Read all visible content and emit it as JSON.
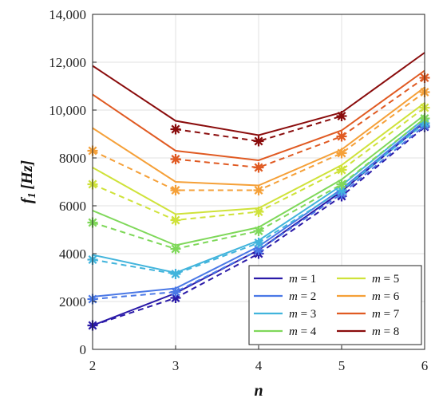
{
  "chart_data": {
    "type": "line",
    "xlabel_var": "n",
    "ylabel_var": "f",
    "ylabel_sub": "1",
    "ylabel_unit": "[Hz]",
    "x": [
      2,
      3,
      4,
      5,
      6
    ],
    "xlim": [
      2,
      6
    ],
    "ylim": [
      0,
      14000
    ],
    "x_ticks": [
      "2",
      "3",
      "4",
      "5",
      "6"
    ],
    "y_ticks": [
      "0",
      "2000",
      "4000",
      "6000",
      "8000",
      "10,000",
      "12,000",
      "14,000"
    ],
    "grid": true,
    "legend_position": "bottom-right",
    "series": [
      {
        "name": "m = 1",
        "var": "m",
        "value": "1",
        "color": "#2a1aa8",
        "solid": [
          1000,
          2350,
          4150,
          6600,
          9500
        ],
        "dashed": [
          1000,
          2150,
          4000,
          6400,
          9300
        ]
      },
      {
        "name": "m = 2",
        "var": "m",
        "value": "2",
        "color": "#4a78e6",
        "solid": [
          2200,
          2550,
          4300,
          6700,
          9550
        ],
        "dashed": [
          2100,
          2400,
          4150,
          6500,
          9350
        ]
      },
      {
        "name": "m = 3",
        "var": "m",
        "value": "3",
        "color": "#41b4dc",
        "solid": [
          3950,
          3200,
          4550,
          6850,
          9650
        ],
        "dashed": [
          3750,
          3150,
          4450,
          6650,
          9450
        ]
      },
      {
        "name": "m = 4",
        "var": "m",
        "value": "4",
        "color": "#7fd85a",
        "solid": [
          5800,
          4350,
          5100,
          7100,
          9800
        ],
        "dashed": [
          5300,
          4200,
          4950,
          6900,
          9650
        ]
      },
      {
        "name": "m = 5",
        "var": "m",
        "value": "5",
        "color": "#cfe23a",
        "solid": [
          7600,
          5650,
          5900,
          7700,
          10300
        ],
        "dashed": [
          6900,
          5400,
          5750,
          7500,
          10100
        ]
      },
      {
        "name": "m = 6",
        "var": "m",
        "value": "6",
        "color": "#f5a038",
        "solid": [
          9250,
          7000,
          6850,
          8350,
          10950
        ],
        "dashed": [
          8300,
          6650,
          6650,
          8200,
          10750
        ]
      },
      {
        "name": "m = 7",
        "var": "m",
        "value": "7",
        "color": "#e05a22",
        "solid": [
          10650,
          8300,
          7900,
          9150,
          11650
        ],
        "dashed": [
          null,
          7950,
          7600,
          8900,
          11350
        ]
      },
      {
        "name": "m = 8",
        "var": "m",
        "value": "8",
        "color": "#8a0c0c",
        "solid": [
          11850,
          9550,
          8950,
          9900,
          12400
        ],
        "dashed": [
          null,
          9200,
          8700,
          9750,
          null
        ]
      }
    ]
  }
}
